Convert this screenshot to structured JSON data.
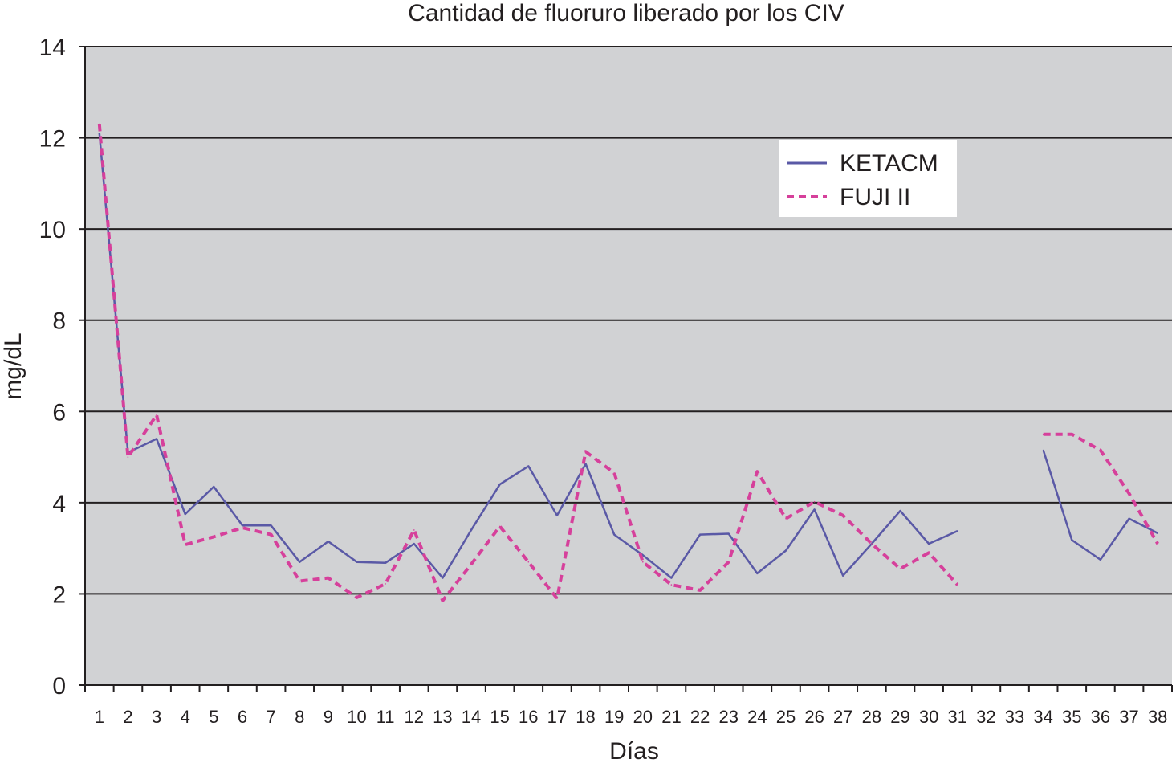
{
  "chart_data": {
    "type": "line",
    "title": "Cantidad de fluoruro liberado por los CIV",
    "xlabel": "Días",
    "ylabel": "mg/dL",
    "ylim": [
      0,
      14
    ],
    "yticks": [
      0,
      2,
      4,
      6,
      8,
      10,
      12,
      14
    ],
    "x": [
      1,
      2,
      3,
      4,
      5,
      6,
      7,
      8,
      9,
      10,
      11,
      12,
      13,
      14,
      15,
      16,
      17,
      18,
      19,
      20,
      21,
      22,
      23,
      24,
      25,
      26,
      27,
      28,
      29,
      30,
      31,
      32,
      33,
      34,
      35,
      36,
      37,
      38
    ],
    "grid": "horizontal",
    "legend_position": "top-right",
    "plot_background": "#d1d2d4",
    "series": [
      {
        "name": "KETACM",
        "color": "#5a59a6",
        "dash": "solid",
        "values": [
          12.1,
          5.1,
          5.4,
          3.75,
          4.35,
          3.5,
          3.5,
          2.7,
          3.15,
          2.7,
          2.68,
          3.1,
          2.35,
          3.4,
          4.4,
          4.8,
          3.72,
          4.85,
          3.3,
          2.85,
          2.35,
          3.3,
          3.32,
          2.45,
          2.95,
          3.85,
          2.4,
          3.1,
          3.82,
          3.1,
          3.38,
          null,
          null,
          5.15,
          3.18,
          2.75,
          3.65,
          3.33
        ]
      },
      {
        "name": "FUJI II",
        "color": "#d6409b",
        "dash": "dashed",
        "values": [
          12.3,
          5.0,
          5.92,
          3.08,
          3.25,
          3.45,
          3.3,
          2.28,
          2.35,
          1.92,
          2.22,
          3.4,
          1.85,
          2.65,
          3.48,
          2.7,
          1.9,
          5.12,
          4.65,
          2.7,
          2.2,
          2.08,
          2.7,
          4.68,
          3.65,
          4.02,
          3.72,
          3.1,
          2.55,
          2.9,
          2.2,
          null,
          null,
          5.5,
          5.5,
          5.15,
          4.2,
          3.1
        ]
      }
    ]
  }
}
